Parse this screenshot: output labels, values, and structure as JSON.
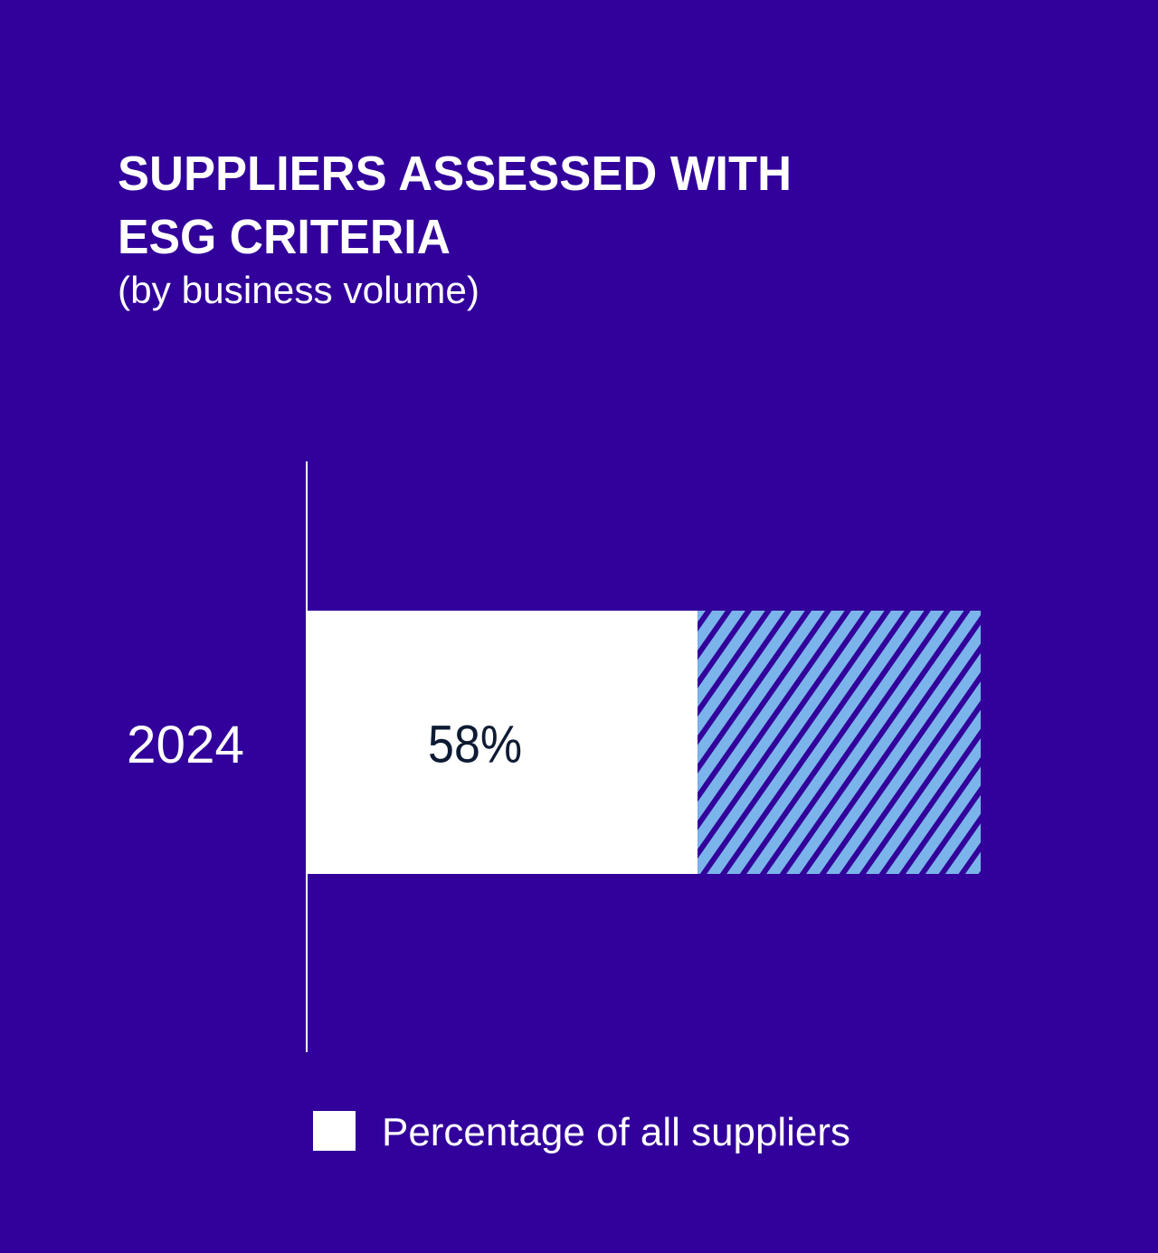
{
  "chart_data": {
    "type": "bar",
    "orientation": "horizontal",
    "stacked": true,
    "title": "SUPPLIERS ASSESSED WITH ESG CRITERIA",
    "title_lines": [
      "SUPPLIERS ASSESSED WITH",
      "ESG CRITERIA"
    ],
    "subtitle": "(by business volume)",
    "categories": [
      "2024"
    ],
    "series": [
      {
        "name": "Percentage of all suppliers",
        "values": [
          58
        ],
        "data_labels": [
          "58%"
        ],
        "color": "#ffffff"
      },
      {
        "values": [
          42
        ],
        "pattern": "diagonal-hatch",
        "color": "#7ab4ea",
        "stripe_color": "#32009b"
      }
    ],
    "xlim": [
      0,
      100
    ],
    "grid": false,
    "legend": {
      "position": "bottom",
      "entries": [
        "Percentage of all suppliers"
      ]
    },
    "colors": {
      "background": "#32009b",
      "text": "#ffffff",
      "label_dark": "#0d1b33"
    }
  }
}
